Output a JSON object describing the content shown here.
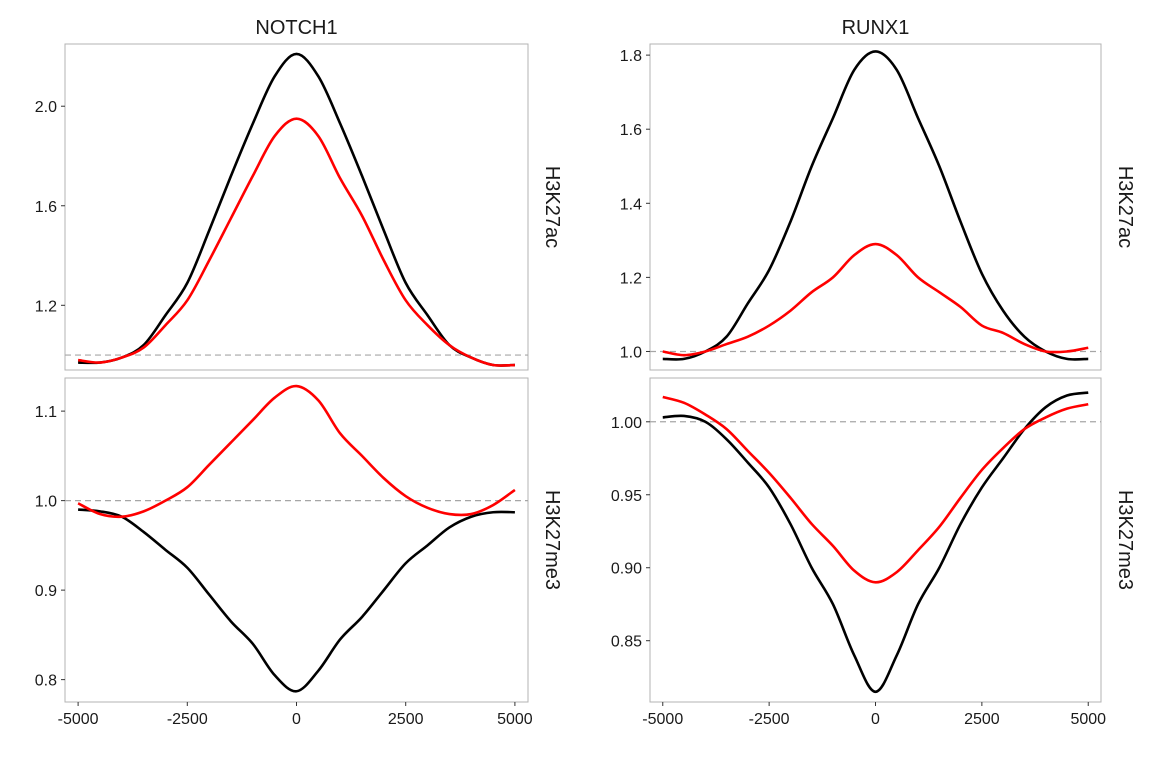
{
  "chart_data": [
    {
      "type": "line",
      "title": "NOTCH1",
      "row_label": "H3K27ac",
      "xlim": [
        -5300,
        5300
      ],
      "ylim": [
        0.94,
        2.25
      ],
      "yticks": [
        1.2,
        1.6,
        2.0
      ],
      "ytick_labels": [
        "1.2",
        "1.6",
        "2.0"
      ],
      "xticks": [],
      "xtick_labels": [],
      "reference_line": 1.0,
      "grid": false,
      "series": [
        {
          "color": "#000000",
          "x": [
            -5000,
            -4500,
            -4000,
            -3500,
            -3000,
            -2500,
            -2000,
            -1500,
            -1000,
            -500,
            0,
            500,
            1000,
            1500,
            2000,
            2500,
            3000,
            3500,
            4000,
            4500,
            5000
          ],
          "y": [
            0.97,
            0.97,
            0.99,
            1.04,
            1.16,
            1.29,
            1.5,
            1.72,
            1.93,
            2.12,
            2.21,
            2.12,
            1.93,
            1.72,
            1.5,
            1.29,
            1.16,
            1.04,
            0.99,
            0.96,
            0.96
          ]
        },
        {
          "color": "#ff0000",
          "x": [
            -5000,
            -4500,
            -4000,
            -3500,
            -3000,
            -2500,
            -2000,
            -1500,
            -1000,
            -500,
            0,
            500,
            1000,
            1500,
            2000,
            2500,
            3000,
            3500,
            4000,
            4500,
            5000
          ],
          "y": [
            0.98,
            0.97,
            0.99,
            1.03,
            1.12,
            1.22,
            1.38,
            1.55,
            1.72,
            1.88,
            1.95,
            1.88,
            1.71,
            1.56,
            1.38,
            1.22,
            1.12,
            1.04,
            0.99,
            0.96,
            0.96
          ]
        }
      ]
    },
    {
      "type": "line",
      "title": "RUNX1",
      "row_label": "H3K27ac",
      "xlim": [
        -5300,
        5300
      ],
      "ylim": [
        0.95,
        1.83
      ],
      "yticks": [
        1.0,
        1.2,
        1.4,
        1.6,
        1.8
      ],
      "ytick_labels": [
        "1.0",
        "1.2",
        "1.4",
        "1.6",
        "1.8"
      ],
      "xticks": [],
      "xtick_labels": [],
      "reference_line": 1.0,
      "grid": false,
      "series": [
        {
          "color": "#000000",
          "x": [
            -5000,
            -4500,
            -4000,
            -3500,
            -3000,
            -2500,
            -2000,
            -1500,
            -1000,
            -500,
            0,
            500,
            1000,
            1500,
            2000,
            2500,
            3000,
            3500,
            4000,
            4500,
            5000
          ],
          "y": [
            0.98,
            0.98,
            1.0,
            1.04,
            1.13,
            1.22,
            1.35,
            1.5,
            1.63,
            1.76,
            1.81,
            1.76,
            1.63,
            1.5,
            1.35,
            1.21,
            1.11,
            1.04,
            1.0,
            0.98,
            0.98
          ]
        },
        {
          "color": "#ff0000",
          "x": [
            -5000,
            -4500,
            -4000,
            -3500,
            -3000,
            -2500,
            -2000,
            -1500,
            -1000,
            -500,
            0,
            500,
            1000,
            1500,
            2000,
            2500,
            3000,
            3500,
            4000,
            4500,
            5000
          ],
          "y": [
            1.0,
            0.99,
            1.0,
            1.02,
            1.04,
            1.07,
            1.11,
            1.16,
            1.2,
            1.26,
            1.29,
            1.26,
            1.2,
            1.16,
            1.12,
            1.07,
            1.05,
            1.02,
            1.0,
            1.0,
            1.01
          ]
        }
      ]
    },
    {
      "type": "line",
      "title": "",
      "row_label": "H3K27me3",
      "xlim": [
        -5300,
        5300
      ],
      "ylim": [
        0.775,
        1.137
      ],
      "yticks": [
        0.8,
        0.9,
        1.0,
        1.1
      ],
      "ytick_labels": [
        "0.8",
        "0.9",
        "1.0",
        "1.1"
      ],
      "xticks": [
        -5000,
        -2500,
        0,
        2500,
        5000
      ],
      "xtick_labels": [
        "-5000",
        "-2500",
        "0",
        "2500",
        "5000"
      ],
      "reference_line": 1.0,
      "grid": false,
      "series": [
        {
          "color": "#000000",
          "x": [
            -5000,
            -4500,
            -4000,
            -3500,
            -3000,
            -2500,
            -2000,
            -1500,
            -1000,
            -500,
            0,
            500,
            1000,
            1500,
            2000,
            2500,
            3000,
            3500,
            4000,
            4500,
            5000
          ],
          "y": [
            0.99,
            0.988,
            0.982,
            0.965,
            0.945,
            0.925,
            0.895,
            0.865,
            0.84,
            0.805,
            0.787,
            0.81,
            0.845,
            0.87,
            0.9,
            0.93,
            0.95,
            0.97,
            0.982,
            0.987,
            0.987
          ]
        },
        {
          "color": "#ff0000",
          "x": [
            -5000,
            -4500,
            -4000,
            -3500,
            -3000,
            -2500,
            -2000,
            -1500,
            -1000,
            -500,
            0,
            500,
            1000,
            1500,
            2000,
            2500,
            3000,
            3500,
            4000,
            4500,
            5000
          ],
          "y": [
            0.997,
            0.985,
            0.982,
            0.988,
            1.0,
            1.015,
            1.04,
            1.065,
            1.09,
            1.115,
            1.128,
            1.112,
            1.075,
            1.05,
            1.025,
            1.005,
            0.992,
            0.985,
            0.985,
            0.995,
            1.012
          ]
        }
      ]
    },
    {
      "type": "line",
      "title": "",
      "row_label": "H3K27me3",
      "xlim": [
        -5300,
        5300
      ],
      "ylim": [
        0.808,
        1.03
      ],
      "yticks": [
        0.85,
        0.9,
        0.95,
        1.0
      ],
      "ytick_labels": [
        "0.85",
        "0.90",
        "0.95",
        "1.00"
      ],
      "xticks": [
        -5000,
        -2500,
        0,
        2500,
        5000
      ],
      "xtick_labels": [
        "-5000",
        "-2500",
        "0",
        "2500",
        "5000"
      ],
      "reference_line": 1.0,
      "grid": false,
      "series": [
        {
          "color": "#000000",
          "x": [
            -5000,
            -4500,
            -4000,
            -3500,
            -3000,
            -2500,
            -2000,
            -1500,
            -1000,
            -500,
            0,
            500,
            1000,
            1500,
            2000,
            2500,
            3000,
            3500,
            4000,
            4500,
            5000
          ],
          "y": [
            1.003,
            1.004,
            1.0,
            0.988,
            0.972,
            0.955,
            0.93,
            0.9,
            0.875,
            0.84,
            0.815,
            0.84,
            0.875,
            0.9,
            0.93,
            0.955,
            0.975,
            0.995,
            1.01,
            1.018,
            1.02
          ]
        },
        {
          "color": "#ff0000",
          "x": [
            -5000,
            -4500,
            -4000,
            -3500,
            -3000,
            -2500,
            -2000,
            -1500,
            -1000,
            -500,
            0,
            500,
            1000,
            1500,
            2000,
            2500,
            3000,
            3500,
            4000,
            4500,
            5000
          ],
          "y": [
            1.017,
            1.013,
            1.005,
            0.995,
            0.98,
            0.965,
            0.948,
            0.93,
            0.915,
            0.898,
            0.89,
            0.897,
            0.912,
            0.928,
            0.948,
            0.967,
            0.982,
            0.995,
            1.003,
            1.009,
            1.012
          ]
        }
      ]
    }
  ]
}
